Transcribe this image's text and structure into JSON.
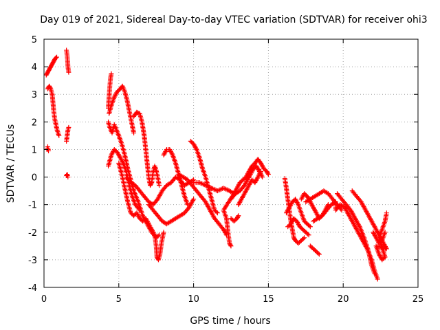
{
  "chart_data": {
    "type": "scatter",
    "title": "Day 019 of 2021, Sidereal Day-to-day VTEC variation (SDTVAR) for receiver ohi3",
    "xlabel": "GPS time / hours",
    "ylabel": "SDTVAR / TECUs",
    "xlim": [
      0,
      25
    ],
    "ylim": [
      -4,
      5
    ],
    "x_ticks": [
      0,
      5,
      10,
      15,
      20,
      25
    ],
    "y_ticks": [
      -4,
      -3,
      -2,
      -1,
      0,
      1,
      2,
      3,
      4,
      5
    ],
    "grid": true,
    "marker": "+",
    "marker_color": "#ff0000",
    "series": [
      {
        "name": "ohi3",
        "points": [
          [
            0.2,
            1.0
          ],
          [
            0.25,
            1.1
          ],
          [
            0.3,
            0.95
          ],
          [
            0.15,
            3.7
          ],
          [
            0.25,
            3.8
          ],
          [
            0.35,
            3.9
          ],
          [
            0.45,
            4.0
          ],
          [
            0.55,
            4.1
          ],
          [
            0.65,
            4.2
          ],
          [
            0.75,
            4.3
          ],
          [
            0.85,
            4.35
          ],
          [
            0.25,
            3.2
          ],
          [
            0.35,
            3.3
          ],
          [
            0.45,
            3.2
          ],
          [
            0.55,
            3.0
          ],
          [
            0.6,
            2.7
          ],
          [
            0.65,
            2.4
          ],
          [
            0.72,
            2.1
          ],
          [
            0.8,
            1.9
          ],
          [
            0.88,
            1.7
          ],
          [
            1.0,
            1.5
          ],
          [
            1.5,
            4.6
          ],
          [
            1.55,
            4.4
          ],
          [
            1.58,
            4.2
          ],
          [
            1.6,
            4.0
          ],
          [
            1.65,
            3.8
          ],
          [
            1.5,
            1.3
          ],
          [
            1.55,
            1.5
          ],
          [
            1.6,
            1.7
          ],
          [
            1.65,
            1.8
          ],
          [
            1.5,
            0.05
          ],
          [
            1.55,
            0.1
          ],
          [
            1.6,
            0.0
          ],
          [
            4.3,
            2.5
          ],
          [
            4.35,
            2.9
          ],
          [
            4.4,
            3.3
          ],
          [
            4.45,
            3.6
          ],
          [
            4.5,
            3.75
          ],
          [
            4.35,
            2.3
          ],
          [
            4.5,
            2.6
          ],
          [
            4.7,
            2.9
          ],
          [
            4.9,
            3.1
          ],
          [
            5.1,
            3.2
          ],
          [
            5.25,
            3.3
          ],
          [
            5.4,
            3.1
          ],
          [
            5.55,
            2.8
          ],
          [
            5.7,
            2.4
          ],
          [
            5.85,
            2.0
          ],
          [
            6.0,
            1.6
          ],
          [
            4.3,
            2.0
          ],
          [
            4.4,
            1.8
          ],
          [
            4.55,
            1.6
          ],
          [
            4.7,
            1.9
          ],
          [
            4.85,
            1.7
          ],
          [
            5.0,
            1.5
          ],
          [
            5.2,
            1.2
          ],
          [
            5.4,
            0.8
          ],
          [
            5.6,
            0.3
          ],
          [
            5.8,
            -0.1
          ],
          [
            6.0,
            -0.5
          ],
          [
            6.3,
            -0.9
          ],
          [
            6.6,
            -1.4
          ],
          [
            6.9,
            -1.7
          ],
          [
            7.2,
            -2.0
          ],
          [
            7.5,
            -2.2
          ],
          [
            7.7,
            -2.1
          ],
          [
            4.3,
            0.4
          ],
          [
            4.5,
            0.8
          ],
          [
            4.7,
            1.0
          ],
          [
            4.9,
            0.9
          ],
          [
            5.1,
            0.7
          ],
          [
            5.3,
            0.5
          ],
          [
            5.5,
            0.2
          ],
          [
            5.7,
            -0.3
          ],
          [
            5.9,
            -0.7
          ],
          [
            6.1,
            -1.0
          ],
          [
            6.4,
            -1.2
          ],
          [
            5.0,
            0.5
          ],
          [
            5.2,
            0.1
          ],
          [
            5.4,
            -0.4
          ],
          [
            5.6,
            -0.9
          ],
          [
            5.8,
            -1.3
          ],
          [
            6.0,
            -1.4
          ],
          [
            6.2,
            -1.3
          ],
          [
            6.4,
            -1.5
          ],
          [
            6.6,
            -1.6
          ],
          [
            6.8,
            -1.5
          ],
          [
            7.0,
            -1.7
          ],
          [
            7.2,
            -1.9
          ],
          [
            7.4,
            -2.1
          ],
          [
            7.5,
            -2.5
          ],
          [
            7.55,
            -2.9
          ],
          [
            7.65,
            -3.0
          ],
          [
            7.75,
            -2.8
          ],
          [
            7.85,
            -2.4
          ],
          [
            8.0,
            -2.0
          ],
          [
            6.0,
            2.2
          ],
          [
            6.2,
            2.35
          ],
          [
            6.4,
            2.3
          ],
          [
            6.55,
            2.0
          ],
          [
            6.7,
            1.5
          ],
          [
            6.8,
            1.0
          ],
          [
            6.9,
            0.5
          ],
          [
            7.0,
            0.0
          ],
          [
            7.1,
            -0.3
          ],
          [
            7.2,
            -0.2
          ],
          [
            7.3,
            0.2
          ],
          [
            7.4,
            0.4
          ],
          [
            7.5,
            0.25
          ],
          [
            7.6,
            0.0
          ],
          [
            7.7,
            -0.3
          ],
          [
            7.0,
            -1.0
          ],
          [
            7.3,
            -1.2
          ],
          [
            7.6,
            -1.4
          ],
          [
            7.9,
            -1.6
          ],
          [
            8.2,
            -1.7
          ],
          [
            8.5,
            -1.6
          ],
          [
            8.8,
            -1.5
          ],
          [
            9.1,
            -1.4
          ],
          [
            9.4,
            -1.3
          ],
          [
            9.7,
            -1.1
          ],
          [
            10.0,
            -0.8
          ],
          [
            5.5,
            0.0
          ],
          [
            5.8,
            -0.2
          ],
          [
            6.1,
            -0.3
          ],
          [
            6.4,
            -0.5
          ],
          [
            6.7,
            -0.7
          ],
          [
            7.0,
            -0.9
          ],
          [
            7.3,
            -1.0
          ],
          [
            7.6,
            -0.8
          ],
          [
            7.9,
            -0.5
          ],
          [
            8.2,
            -0.3
          ],
          [
            8.5,
            -0.2
          ],
          [
            8.8,
            0.0
          ],
          [
            9.1,
            -0.1
          ],
          [
            9.4,
            -0.3
          ],
          [
            9.7,
            -0.2
          ],
          [
            10.0,
            -0.1
          ],
          [
            8.0,
            0.8
          ],
          [
            8.2,
            1.0
          ],
          [
            8.4,
            1.0
          ],
          [
            8.6,
            0.8
          ],
          [
            8.8,
            0.5
          ],
          [
            9.0,
            0.1
          ],
          [
            9.2,
            -0.3
          ],
          [
            9.4,
            -0.7
          ],
          [
            9.6,
            -1.0
          ],
          [
            9.0,
            0.1
          ],
          [
            9.3,
            0.0
          ],
          [
            9.6,
            -0.1
          ],
          [
            9.9,
            -0.3
          ],
          [
            10.2,
            -0.5
          ],
          [
            10.5,
            -0.7
          ],
          [
            10.8,
            -0.9
          ],
          [
            11.1,
            -1.2
          ],
          [
            11.4,
            -1.5
          ],
          [
            11.7,
            -1.7
          ],
          [
            12.0,
            -1.9
          ],
          [
            12.2,
            -2.1
          ],
          [
            9.8,
            1.3
          ],
          [
            10.0,
            1.2
          ],
          [
            10.2,
            1.0
          ],
          [
            10.4,
            0.7
          ],
          [
            10.6,
            0.3
          ],
          [
            10.8,
            0.0
          ],
          [
            11.0,
            -0.4
          ],
          [
            11.2,
            -0.8
          ],
          [
            11.4,
            -1.2
          ],
          [
            11.6,
            -1.3
          ],
          [
            10.0,
            -0.2
          ],
          [
            10.4,
            -0.2
          ],
          [
            10.8,
            -0.3
          ],
          [
            11.2,
            -0.4
          ],
          [
            11.6,
            -0.5
          ],
          [
            12.0,
            -0.4
          ],
          [
            12.4,
            -0.5
          ],
          [
            12.7,
            -0.6
          ],
          [
            12.0,
            -1.2
          ],
          [
            12.2,
            -1.5
          ],
          [
            12.3,
            -2.0
          ],
          [
            12.4,
            -2.4
          ],
          [
            12.5,
            -2.5
          ],
          [
            12.5,
            -1.5
          ],
          [
            12.7,
            -1.6
          ],
          [
            12.9,
            -1.5
          ],
          [
            13.0,
            -1.4
          ],
          [
            12.7,
            -0.6
          ],
          [
            12.9,
            -0.4
          ],
          [
            13.1,
            -0.2
          ],
          [
            13.3,
            -0.1
          ],
          [
            13.5,
            0.0
          ],
          [
            13.7,
            0.2
          ],
          [
            13.9,
            0.4
          ],
          [
            14.1,
            0.5
          ],
          [
            14.3,
            0.65
          ],
          [
            14.5,
            0.5
          ],
          [
            14.7,
            0.3
          ],
          [
            14.9,
            0.2
          ],
          [
            15.0,
            0.1
          ],
          [
            12.5,
            -0.8
          ],
          [
            12.8,
            -0.6
          ],
          [
            13.1,
            -0.5
          ],
          [
            13.4,
            -0.3
          ],
          [
            13.6,
            -0.1
          ],
          [
            13.8,
            0.1
          ],
          [
            14.0,
            0.3
          ],
          [
            14.2,
            0.4
          ],
          [
            14.4,
            0.2
          ],
          [
            14.6,
            0.0
          ],
          [
            13.0,
            -1.0
          ],
          [
            13.3,
            -0.7
          ],
          [
            13.6,
            -0.4
          ],
          [
            13.9,
            -0.1
          ],
          [
            14.1,
            -0.2
          ],
          [
            14.3,
            0.0
          ],
          [
            14.5,
            0.2
          ],
          [
            16.1,
            -0.05
          ],
          [
            16.2,
            -0.4
          ],
          [
            16.3,
            -0.8
          ],
          [
            16.4,
            -1.2
          ],
          [
            16.5,
            -1.6
          ],
          [
            16.6,
            -1.9
          ],
          [
            16.7,
            -2.2
          ],
          [
            16.8,
            -2.3
          ],
          [
            17.0,
            -2.4
          ],
          [
            17.2,
            -2.3
          ],
          [
            17.4,
            -2.2
          ],
          [
            16.2,
            -1.3
          ],
          [
            16.4,
            -1.1
          ],
          [
            16.6,
            -0.9
          ],
          [
            16.8,
            -0.8
          ],
          [
            17.0,
            -1.0
          ],
          [
            17.2,
            -1.3
          ],
          [
            17.4,
            -1.6
          ],
          [
            17.6,
            -1.7
          ],
          [
            17.8,
            -1.8
          ],
          [
            16.3,
            -1.8
          ],
          [
            16.5,
            -1.7
          ],
          [
            16.7,
            -1.5
          ],
          [
            16.9,
            -1.6
          ],
          [
            17.1,
            -1.8
          ],
          [
            17.3,
            -1.9
          ],
          [
            17.5,
            -2.0
          ],
          [
            17.7,
            -2.1
          ],
          [
            17.2,
            -0.8
          ],
          [
            17.4,
            -0.6
          ],
          [
            17.6,
            -0.7
          ],
          [
            17.8,
            -0.9
          ],
          [
            18.0,
            -1.1
          ],
          [
            18.2,
            -1.3
          ],
          [
            18.4,
            -1.5
          ],
          [
            18.6,
            -1.4
          ],
          [
            18.8,
            -1.2
          ],
          [
            19.0,
            -1.0
          ],
          [
            17.5,
            -0.9
          ],
          [
            17.8,
            -0.8
          ],
          [
            18.1,
            -0.7
          ],
          [
            18.4,
            -0.6
          ],
          [
            18.7,
            -0.5
          ],
          [
            19.0,
            -0.6
          ],
          [
            19.3,
            -0.8
          ],
          [
            19.6,
            -1.0
          ],
          [
            19.9,
            -1.2
          ],
          [
            17.8,
            -2.5
          ],
          [
            18.0,
            -2.6
          ],
          [
            18.2,
            -2.7
          ],
          [
            18.4,
            -2.8
          ],
          [
            18.0,
            -1.6
          ],
          [
            18.3,
            -1.5
          ],
          [
            18.6,
            -1.4
          ],
          [
            18.9,
            -1.2
          ],
          [
            19.2,
            -1.0
          ],
          [
            19.5,
            -0.9
          ],
          [
            19.5,
            -1.2
          ],
          [
            19.8,
            -1.0
          ],
          [
            20.1,
            -1.1
          ],
          [
            20.4,
            -1.4
          ],
          [
            20.7,
            -1.7
          ],
          [
            21.0,
            -2.0
          ],
          [
            21.3,
            -2.3
          ],
          [
            21.6,
            -2.6
          ],
          [
            21.9,
            -3.0
          ],
          [
            22.1,
            -3.4
          ],
          [
            22.3,
            -3.7
          ],
          [
            19.6,
            -0.6
          ],
          [
            19.9,
            -0.8
          ],
          [
            20.2,
            -1.0
          ],
          [
            20.5,
            -1.2
          ],
          [
            20.8,
            -1.5
          ],
          [
            21.1,
            -1.8
          ],
          [
            21.4,
            -2.2
          ],
          [
            21.7,
            -2.7
          ],
          [
            21.9,
            -3.2
          ],
          [
            22.1,
            -3.5
          ],
          [
            20.6,
            -0.5
          ],
          [
            20.9,
            -0.7
          ],
          [
            21.2,
            -0.9
          ],
          [
            21.5,
            -1.2
          ],
          [
            21.8,
            -1.5
          ],
          [
            22.1,
            -1.8
          ],
          [
            22.4,
            -2.1
          ],
          [
            22.7,
            -2.4
          ],
          [
            22.9,
            -2.6
          ],
          [
            22.2,
            -2.5
          ],
          [
            22.4,
            -2.8
          ],
          [
            22.6,
            -3.0
          ],
          [
            22.8,
            -2.9
          ],
          [
            22.4,
            -2.2
          ],
          [
            22.6,
            -1.9
          ],
          [
            22.8,
            -1.6
          ],
          [
            22.9,
            -1.3
          ],
          [
            22.0,
            -2.0
          ],
          [
            22.2,
            -2.2
          ],
          [
            22.4,
            -2.4
          ],
          [
            22.6,
            -2.3
          ],
          [
            22.8,
            -2.0
          ]
        ]
      }
    ]
  }
}
